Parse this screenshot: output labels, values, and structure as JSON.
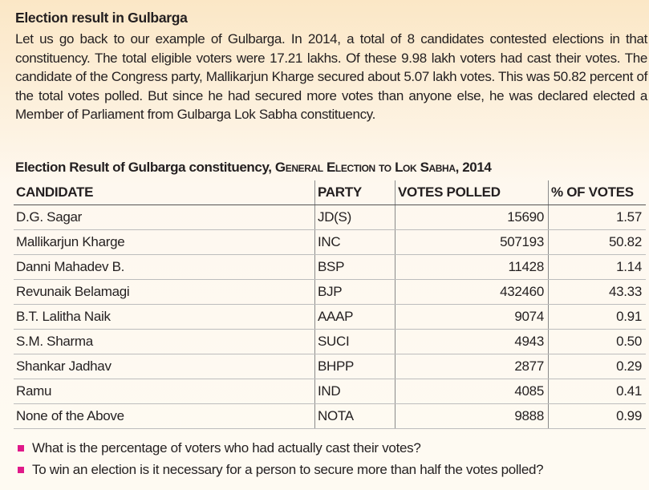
{
  "box": {
    "heading": "Election result in Gulbarga",
    "paragraph": "Let us go back to our example of Gulbarga. In 2014, a total of 8 candidates contested elections in that constituency. The total eligible voters were 17.21 lakhs. Of these 9.98 lakh voters had cast their votes. The candidate of the Congress party, Mallikarjun Kharge secured about 5.07 lakh votes. This was 50.82 percent of the total votes polled. But since he had secured more votes than anyone else, he was declared elected a Member of Parliament from Gulbarga Lok Sabha constituency."
  },
  "table": {
    "caption_main": "Election Result of Gulbarga constituency, ",
    "caption_sc": "General Election to Lok Sabha",
    "caption_year": ", 2014",
    "headers": [
      "CANDIDATE",
      "PARTY",
      "VOTES POLLED",
      "% OF VOTES"
    ],
    "rows": [
      [
        "D.G. Sagar",
        "JD(S)",
        "15690",
        "1.57"
      ],
      [
        "Mallikarjun Kharge",
        "INC",
        "507193",
        "50.82"
      ],
      [
        "Danni Mahadev B.",
        "BSP",
        "11428",
        "1.14"
      ],
      [
        "Revunaik Belamagi",
        "BJP",
        "432460",
        "43.33"
      ],
      [
        "B.T. Lalitha Naik",
        "AAAP",
        "9074",
        "0.91"
      ],
      [
        "S.M. Sharma",
        "SUCI",
        "4943",
        "0.50"
      ],
      [
        "Shankar Jadhav",
        "BHPP",
        "2877",
        "0.29"
      ],
      [
        "Ramu",
        "IND",
        "4085",
        "0.41"
      ],
      [
        "None of the Above",
        "NOTA",
        "9888",
        "0.99"
      ]
    ]
  },
  "questions": [
    "What is the percentage of voters who had actually cast their votes?",
    "To win an election is it necessary for a person to secure more than half the votes polled?"
  ],
  "colors": {
    "box_background": "#fbe7c6",
    "bullet": "#e0198a"
  },
  "icons": {
    "bullet": "square-bullet-icon"
  }
}
